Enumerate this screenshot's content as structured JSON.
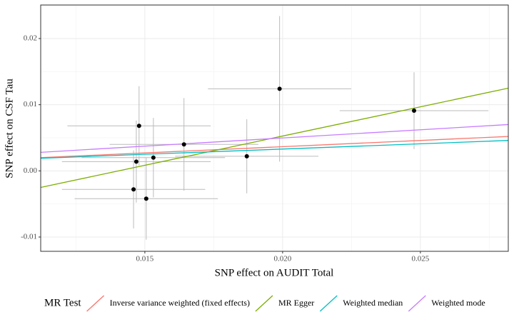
{
  "chart_data": {
    "type": "scatter",
    "x_label": "SNP effect on AUDIT Total",
    "y_label": "SNP effect on CSF Tau",
    "xlim": [
      0.01122,
      0.02819
    ],
    "ylim": [
      -0.01216,
      0.02507
    ],
    "xticks": [
      0.015,
      {
        "value": 0.02,
        "label": "0.020"
      },
      0.025
    ],
    "yticks": [
      -0.01,
      {
        "value": 0,
        "label": "0.00"
      },
      0.01,
      0.02
    ],
    "grid": true,
    "minor_grid": true,
    "points": {
      "color": "#000000",
      "error_color": "#bbbbbb",
      "x": [
        0.01479,
        0.01469,
        0.01459,
        0.01505,
        0.01531,
        0.01642,
        0.0187,
        0.01989,
        0.02477
      ],
      "values": [
        0.0068,
        0.0014,
        -0.0028,
        -0.0042,
        0.002,
        0.004,
        0.0022,
        0.0124,
        0.0091
      ],
      "x_error": [
        0.0026,
        0.0027,
        0.0026,
        0.0026,
        0.0026,
        0.0027,
        0.0026,
        0.0026,
        0.0027
      ],
      "y_error": [
        0.006,
        0.0062,
        0.0059,
        0.0062,
        0.006,
        0.007,
        0.0056,
        0.011,
        0.0058
      ]
    },
    "series": [
      {
        "name": "Inverse variance weighted (fixed effects)",
        "color": "#F8766D",
        "x": [
          0.01122,
          0.02819
        ],
        "values": [
          0.002,
          0.0052
        ]
      },
      {
        "name": "MR Egger",
        "color": "#7CAE00",
        "x": [
          0.01122,
          0.02819
        ],
        "values": [
          -0.0025,
          0.0125
        ]
      },
      {
        "name": "Weighted median",
        "color": "#00BFC4",
        "x": [
          0.01122,
          0.02819
        ],
        "values": [
          0.0019,
          0.0046
        ]
      },
      {
        "name": "Weighted mode",
        "color": "#C77CFF",
        "x": [
          0.01122,
          0.02819
        ],
        "values": [
          0.0028,
          0.007
        ]
      }
    ],
    "legend": {
      "title": "MR Test",
      "position": "bottom"
    }
  }
}
